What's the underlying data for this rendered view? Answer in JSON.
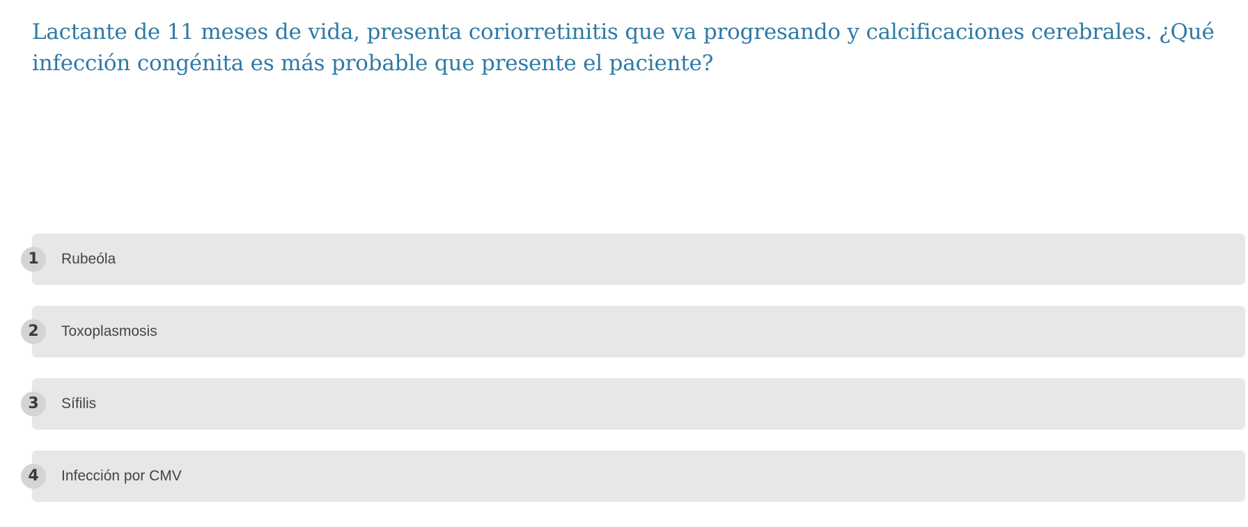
{
  "question": {
    "text": "Lactante de 11 meses de vida, presenta coriorretinitis que va progresando y calcificaciones cerebrales. ¿Qué infección congénita es más probable que presente el paciente?"
  },
  "options": [
    {
      "number": "1",
      "label": "Rubeóla"
    },
    {
      "number": "2",
      "label": "Toxoplasmosis"
    },
    {
      "number": "3",
      "label": "Sífilis"
    },
    {
      "number": "4",
      "label": "Infección por CMV"
    }
  ],
  "colors": {
    "question_text": "#2e7aa6",
    "option_background": "#e6e7e8",
    "badge_background": "#d3d4d6"
  }
}
